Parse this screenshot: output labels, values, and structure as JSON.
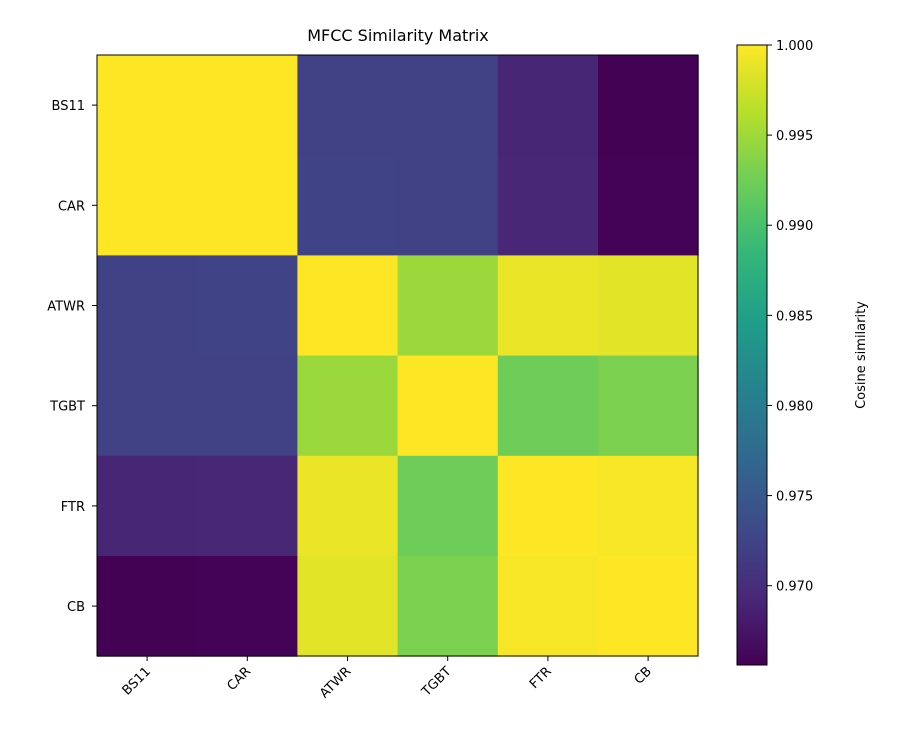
{
  "chart_data": {
    "type": "heatmap",
    "title": "MFCC Similarity Matrix",
    "x_categories": [
      "BS11",
      "CAR",
      "ATWR",
      "TGBT",
      "FTR",
      "CB"
    ],
    "y_categories": [
      "BS11",
      "CAR",
      "ATWR",
      "TGBT",
      "FTR",
      "CB"
    ],
    "values": [
      [
        1.0,
        1.0,
        0.9724,
        0.9723,
        0.9692,
        0.9657
      ],
      [
        1.0,
        1.0,
        0.9725,
        0.9724,
        0.9693,
        0.9658
      ],
      [
        0.9724,
        0.9725,
        1.0,
        0.9948,
        0.999,
        0.9986
      ],
      [
        0.9723,
        0.9724,
        0.9948,
        1.0,
        0.9924,
        0.9931
      ],
      [
        0.9692,
        0.9693,
        0.999,
        0.9924,
        1.0,
        0.9997
      ],
      [
        0.9657,
        0.9658,
        0.9986,
        0.9931,
        0.9997,
        1.0
      ]
    ],
    "colormap": "viridis",
    "colorbar": {
      "label": "Cosine similarity",
      "range": [
        0.9656,
        1.0
      ],
      "ticks": [
        "0.970",
        "0.975",
        "0.980",
        "0.985",
        "0.990",
        "0.995",
        "1.000"
      ]
    }
  }
}
